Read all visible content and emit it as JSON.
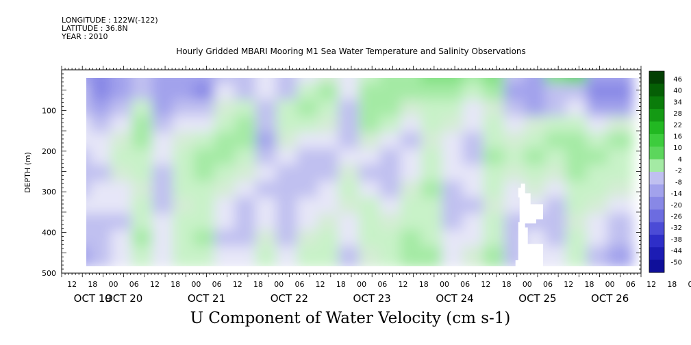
{
  "header": {
    "longitude": "LONGITUDE : 122W(-122)",
    "latitude": "LATITUDE : 36.8N",
    "year": "YEAR : 2010"
  },
  "title": "Hourly Gridded MBARI Mooring M1 Sea Water Temperature and Salinity Observations",
  "bottom_title": "U Component of Water Velocity (cm s-1)",
  "colors": {
    "negative_ramp": [
      "#e6e6f8",
      "#c0c0f0",
      "#a2a2ec",
      "#8888e6",
      "#6c6ce0",
      "#4b4bd6",
      "#2e2ec8",
      "#1c1cb4",
      "#0f0f9a",
      "#060680"
    ],
    "positive_ramp": [
      "#c8f2c8",
      "#a4eaa4",
      "#7fe07f",
      "#5cd65c",
      "#3dcc3d",
      "#22b822",
      "#149a14",
      "#0a7c0a",
      "#055f05",
      "#033f03"
    ],
    "missing": "#ffffff"
  },
  "chart_data": {
    "type": "heatmap",
    "title": "Hourly Gridded MBARI Mooring M1 Sea Water Temperature and Salinity Observations",
    "xlabel": "",
    "ylabel": "DEPTH (m)",
    "variable": "U Component of Water Velocity (cm s-1)",
    "x_time_hours": [
      12,
      18,
      0,
      6,
      12,
      18,
      0,
      6,
      12,
      18,
      0,
      6,
      12,
      18,
      0,
      6,
      12,
      18,
      0,
      6,
      12,
      18,
      0,
      6,
      12,
      18,
      0,
      6,
      12,
      18,
      0,
      6
    ],
    "x_tick_labels": [
      "12",
      "18",
      "00",
      "06",
      "12",
      "18",
      "00",
      "06",
      "12",
      "18",
      "00",
      "06",
      "12",
      "18",
      "00",
      "06",
      "12",
      "18",
      "00",
      "06",
      "12",
      "18",
      "00",
      "06",
      "12",
      "18",
      "00",
      "06",
      "12",
      "18",
      "00",
      "06"
    ],
    "x_date_labels": [
      "OCT 19",
      "OCT 20",
      "OCT 21",
      "OCT 22",
      "OCT 23",
      "OCT 24",
      "OCT 25",
      "OCT 26"
    ],
    "x_range": [
      "2010-10-19T09:00",
      "2010-10-26T09:00"
    ],
    "data_start": "2010-10-19T15:00",
    "y_ticks": [
      100,
      200,
      300,
      400,
      500
    ],
    "ylim": [
      500,
      0
    ],
    "data_depth_range": [
      20,
      485
    ],
    "colorbar_levels": [
      46,
      40,
      34,
      28,
      22,
      16,
      10,
      4,
      -2,
      -8,
      -14,
      -20,
      -26,
      -32,
      -38,
      -44,
      -50
    ],
    "colorbar_labels": [
      "46",
      "40",
      "34",
      "28",
      "22",
      "16",
      "10",
      "4",
      "-2",
      "-8",
      "-14",
      "-20",
      "-26",
      "-32",
      "-38",
      "-44",
      "-50"
    ],
    "contour_interval": 3,
    "time_columns": [
      "OCT 19 18",
      "OCT 20 00",
      "OCT 20 06",
      "OCT 20 12",
      "OCT 20 18",
      "OCT 21 00",
      "OCT 21 06",
      "OCT 21 12",
      "OCT 21 18",
      "OCT 22 00",
      "OCT 22 06",
      "OCT 22 12",
      "OCT 22 18",
      "OCT 23 00",
      "OCT 23 06",
      "OCT 23 12",
      "OCT 23 18",
      "OCT 24 00",
      "OCT 24 06",
      "OCT 24 12",
      "OCT 24 18",
      "OCT 25 00",
      "OCT 25 06",
      "OCT 25 12",
      "OCT 25 18",
      "OCT 26 00",
      "OCT 26 06"
    ],
    "depth_rows": [
      20,
      60,
      100,
      140,
      180,
      220,
      260,
      300,
      340,
      380,
      420,
      460
    ],
    "values": [
      [
        -14,
        -22,
        -18,
        -10,
        -16,
        -14,
        -18,
        -8,
        -12,
        -6,
        -12,
        -4,
        4,
        -4,
        6,
        10,
        14,
        16,
        18,
        14,
        16,
        -10,
        -14,
        20,
        22,
        -18,
        -16
      ],
      [
        -12,
        -20,
        -16,
        -8,
        -18,
        -16,
        -20,
        -6,
        -10,
        -4,
        -8,
        8,
        10,
        -6,
        10,
        14,
        10,
        14,
        10,
        8,
        12,
        -16,
        -18,
        -12,
        -8,
        -22,
        -20
      ],
      [
        -8,
        -14,
        -10,
        6,
        -14,
        -10,
        -12,
        4,
        8,
        -10,
        6,
        12,
        8,
        -8,
        14,
        12,
        4,
        8,
        6,
        -4,
        4,
        -12,
        -16,
        -10,
        -4,
        -18,
        -14
      ],
      [
        -4,
        -8,
        -6,
        10,
        -8,
        -4,
        -6,
        8,
        12,
        -12,
        8,
        6,
        4,
        -10,
        10,
        8,
        -4,
        6,
        4,
        -6,
        6,
        -4,
        4,
        6,
        8,
        -6,
        4
      ],
      [
        -6,
        -4,
        4,
        12,
        -4,
        4,
        6,
        10,
        14,
        -14,
        4,
        -4,
        -6,
        -8,
        4,
        -4,
        -8,
        4,
        -4,
        -8,
        8,
        4,
        8,
        10,
        12,
        6,
        10
      ],
      [
        -8,
        -6,
        6,
        8,
        -6,
        6,
        10,
        12,
        8,
        -10,
        -4,
        -8,
        -10,
        -4,
        -6,
        -10,
        -6,
        6,
        -6,
        -10,
        10,
        6,
        10,
        8,
        14,
        10,
        8
      ],
      [
        -10,
        -8,
        4,
        6,
        -8,
        8,
        12,
        6,
        4,
        -6,
        -8,
        -12,
        -8,
        4,
        -8,
        -12,
        -4,
        8,
        -4,
        -6,
        8,
        4,
        6,
        4,
        12,
        8,
        6
      ],
      [
        -8,
        -6,
        -4,
        4,
        -10,
        6,
        8,
        4,
        -6,
        -8,
        -10,
        -8,
        -6,
        6,
        -4,
        -8,
        4,
        10,
        -8,
        -4,
        6,
        -4,
        4,
        -4,
        8,
        6,
        4
      ],
      [
        -6,
        -4,
        -6,
        6,
        -8,
        4,
        6,
        -4,
        -8,
        -6,
        -12,
        -6,
        -4,
        4,
        6,
        -4,
        6,
        8,
        -10,
        -8,
        4,
        -6,
        -6,
        -8,
        6,
        4,
        -4
      ],
      [
        -10,
        -8,
        -8,
        8,
        -6,
        6,
        8,
        -6,
        -10,
        -4,
        -10,
        -4,
        4,
        -4,
        8,
        4,
        8,
        6,
        -8,
        -6,
        6,
        -8,
        -8,
        -10,
        4,
        -4,
        -8
      ],
      [
        -12,
        -10,
        -6,
        10,
        -4,
        8,
        10,
        -8,
        -8,
        4,
        -8,
        4,
        6,
        -6,
        6,
        6,
        10,
        8,
        -6,
        -4,
        8,
        -10,
        -6,
        -8,
        6,
        -6,
        -12
      ],
      [
        -14,
        -8,
        -4,
        8,
        -6,
        6,
        8,
        -6,
        -6,
        6,
        -6,
        6,
        8,
        -8,
        4,
        8,
        12,
        10,
        -4,
        4,
        10,
        -8,
        -4,
        -6,
        8,
        -8,
        -16
      ]
    ],
    "missing_region": {
      "time_start": "OCT 25 00",
      "time_end": "OCT 25 06",
      "depth_start": 280,
      "depth_end": 485
    }
  },
  "axis": {
    "y_label": "DEPTH (m)",
    "y_tick_labels": [
      "100",
      "200",
      "300",
      "400",
      "500"
    ],
    "x_tick_labels": [
      "12",
      "18",
      "00",
      "06",
      "12",
      "18",
      "00",
      "06",
      "12",
      "18",
      "00",
      "06",
      "12",
      "18",
      "00",
      "06",
      "12",
      "18",
      "00",
      "06",
      "12",
      "18",
      "00",
      "06",
      "12",
      "18",
      "00",
      "06",
      "12",
      "18",
      "00",
      "06"
    ],
    "x_date_labels": [
      "OCT 19",
      "OCT 20",
      "OCT 21",
      "OCT 22",
      "OCT 23",
      "OCT 24",
      "OCT 25",
      "OCT 26"
    ]
  }
}
